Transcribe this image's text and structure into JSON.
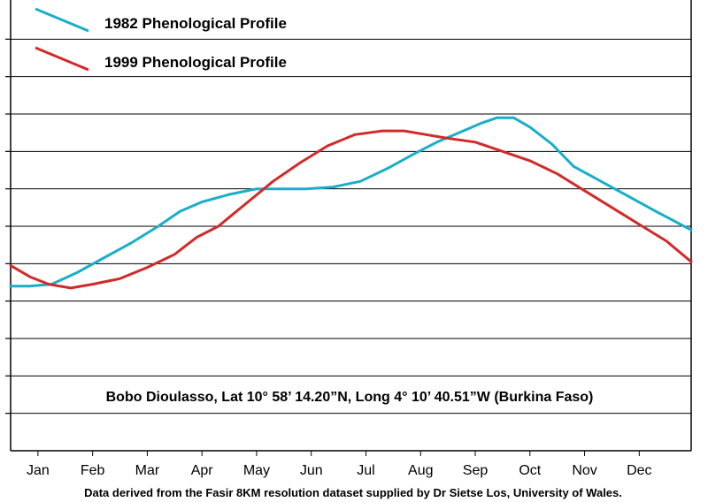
{
  "chart_data": {
    "type": "line",
    "title": "",
    "xlabel": "",
    "ylabel": "",
    "categories": [
      "Jan",
      "Feb",
      "Mar",
      "Apr",
      "May",
      "Jun",
      "Jul",
      "Aug",
      "Sep",
      "Oct",
      "Nov",
      "Dec"
    ],
    "xlim": [
      0.5,
      12.95
    ],
    "ylim": [
      0,
      12
    ],
    "grid": true,
    "legend_position": "top-left",
    "series": [
      {
        "name": "1982 Phenological Profile",
        "color": "#1aaec9",
        "x": [
          0.5,
          0.85,
          1.25,
          1.7,
          2.2,
          2.7,
          3.2,
          3.6,
          4.0,
          4.5,
          5.0,
          5.4,
          5.9,
          6.4,
          6.9,
          7.4,
          7.9,
          8.3,
          8.7,
          9.1,
          9.4,
          9.7,
          10.0,
          10.4,
          10.8,
          11.3,
          11.8,
          12.3,
          12.95
        ],
        "y": [
          4.4,
          4.4,
          4.45,
          4.75,
          5.15,
          5.55,
          6.0,
          6.4,
          6.65,
          6.85,
          7.0,
          7.0,
          7.0,
          7.05,
          7.2,
          7.55,
          7.95,
          8.25,
          8.5,
          8.75,
          8.9,
          8.9,
          8.65,
          8.2,
          7.6,
          7.2,
          6.8,
          6.4,
          5.9
        ]
      },
      {
        "name": "1999 Phenological Profile",
        "color": "#d22a2a",
        "x": [
          0.5,
          0.85,
          1.2,
          1.6,
          2.0,
          2.5,
          3.0,
          3.5,
          3.9,
          4.3,
          4.8,
          5.3,
          5.8,
          6.3,
          6.8,
          7.3,
          7.7,
          8.1,
          8.5,
          9.0,
          9.5,
          10.0,
          10.5,
          11.0,
          11.5,
          12.0,
          12.5,
          12.95
        ],
        "y": [
          4.95,
          4.65,
          4.45,
          4.35,
          4.45,
          4.6,
          4.9,
          5.25,
          5.7,
          6.0,
          6.6,
          7.2,
          7.7,
          8.15,
          8.45,
          8.55,
          8.55,
          8.45,
          8.35,
          8.25,
          8.0,
          7.75,
          7.4,
          6.95,
          6.5,
          6.05,
          5.6,
          5.05
        ]
      }
    ],
    "annotation": "Bobo Dioulasso, Lat 10° 58’ 14.20”N, Long 4° 10’ 40.51”W (Burkina Faso)",
    "caption": "Data derived from the Fasir 8KM resolution dataset supplied by Dr Sietse Los, University of Wales."
  }
}
